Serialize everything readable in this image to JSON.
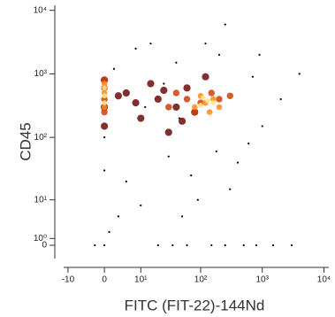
{
  "chart_data": {
    "type": "scatter",
    "x_label": "FITC (FIT-22)-144Nd",
    "y_label": "CD45",
    "xscale": {
      "type": "arcsinh",
      "cofactor": 5.5
    },
    "yscale": {
      "type": "arcsinh",
      "cofactor": 4
    },
    "xlim": [
      -12,
      12000
    ],
    "ylim": [
      -2,
      12000
    ],
    "xticks": [
      {
        "value": -10,
        "label": "-10"
      },
      0,
      {
        "value": 10,
        "label": "10¹"
      },
      {
        "value": 100,
        "label": "10²"
      },
      {
        "value": 1000,
        "label": "10³"
      },
      {
        "value": 10000,
        "label": "10⁴"
      }
    ],
    "yticks": [
      0,
      {
        "value": 1,
        "label": "10⁰"
      },
      {
        "value": 10,
        "label": "10¹"
      },
      {
        "value": 100,
        "label": "10²"
      },
      {
        "value": 1000,
        "label": "10³"
      },
      {
        "value": 10000,
        "label": "10⁴"
      }
    ],
    "series": [
      {
        "color": "#000000",
        "x": [
          3,
          0,
          1,
          -2,
          0,
          20,
          35,
          60,
          150,
          250,
          500,
          800,
          1500,
          3000,
          700,
          40,
          15,
          8,
          5,
          120,
          200,
          90,
          30,
          600,
          1000,
          2000,
          50,
          10,
          300,
          400,
          2,
          0,
          12,
          25,
          70,
          180,
          900,
          4000,
          250,
          45
        ],
        "values": [
          5,
          30,
          2,
          0,
          0,
          0,
          0,
          0,
          0,
          0,
          0,
          0,
          0,
          0,
          900,
          1500,
          3000,
          2500,
          20,
          3000,
          2000,
          10,
          50,
          80,
          150,
          400,
          5,
          8,
          15,
          40,
          1200,
          100,
          300,
          700,
          25,
          60,
          2000,
          1000,
          6000,
          200
        ]
      },
      {
        "color": "#6b0a0a",
        "x": [
          0,
          0,
          0,
          5,
          10,
          20,
          40,
          60,
          30,
          15,
          80,
          120,
          8,
          3,
          25,
          50
        ],
        "values": [
          300,
          150,
          800,
          500,
          200,
          400,
          300,
          600,
          120,
          700,
          250,
          900,
          350,
          450,
          550,
          180
        ]
      },
      {
        "color": "#d23c0c",
        "x": [
          0,
          0,
          0,
          0,
          30,
          60,
          100,
          150,
          200,
          300,
          80,
          40
        ],
        "values": [
          250,
          400,
          600,
          800,
          300,
          400,
          350,
          500,
          400,
          450,
          250,
          500
        ]
      },
      {
        "color": "#ff8c1a",
        "x": [
          0,
          0,
          0,
          80,
          120,
          160,
          200,
          100,
          140
        ],
        "values": [
          300,
          500,
          700,
          300,
          350,
          400,
          300,
          450,
          250
        ]
      },
      {
        "color": "#ffe88a",
        "x": [
          0,
          0,
          0,
          100,
          130,
          160,
          110
        ],
        "values": [
          350,
          450,
          600,
          320,
          380,
          350,
          420
        ]
      }
    ]
  }
}
